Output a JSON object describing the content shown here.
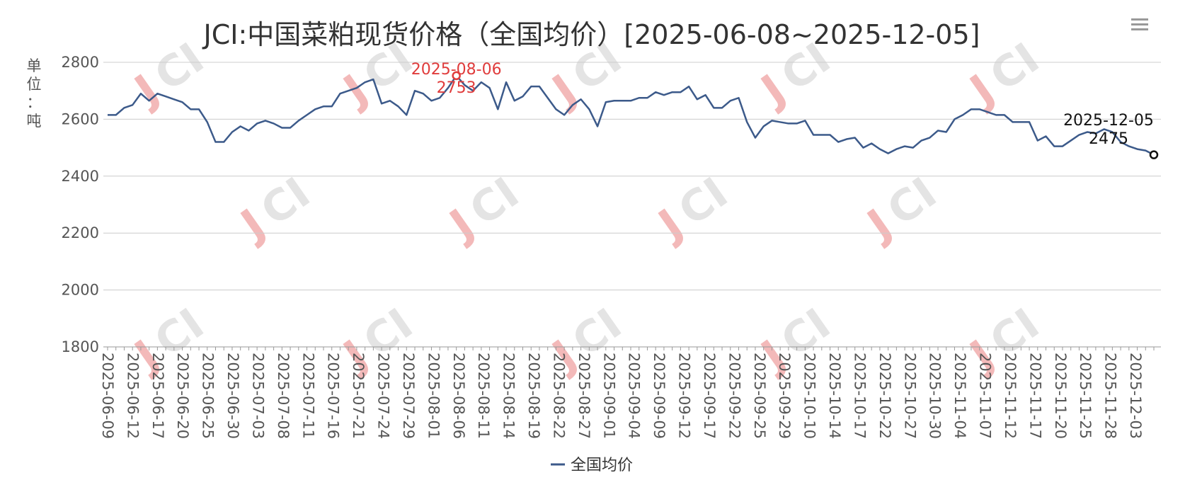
{
  "menu_icon": "hamburger-menu-icon",
  "watermark_text": "JCI",
  "colors": {
    "series": "#3c5a8a",
    "grid": "#cccccc",
    "axis": "#999999",
    "max_annotation": "#e03c3c",
    "last_annotation": "#111111",
    "watermark_red": "#f3b9b9",
    "watermark_gray": "#e4e4e4"
  },
  "chart_data": {
    "type": "line",
    "title": "JCI:中国菜粕现货价格（全国均价）[2025-06-08~2025-12-05]",
    "ylabel": "单位：吨",
    "ylim": [
      1800,
      2800
    ],
    "yticks": [
      1800,
      2000,
      2200,
      2400,
      2600,
      2800
    ],
    "grid": true,
    "legend": {
      "position": "bottom-center",
      "entries": [
        "全国均价"
      ]
    },
    "x_tick_labels": [
      "2025-06-09",
      "2025-06-12",
      "2025-06-17",
      "2025-06-20",
      "2025-06-25",
      "2025-06-30",
      "2025-07-03",
      "2025-07-08",
      "2025-07-11",
      "2025-07-16",
      "2025-07-21",
      "2025-07-24",
      "2025-07-29",
      "2025-08-01",
      "2025-08-06",
      "2025-08-11",
      "2025-08-14",
      "2025-08-19",
      "2025-08-22",
      "2025-08-27",
      "2025-09-01",
      "2025-09-04",
      "2025-09-09",
      "2025-09-12",
      "2025-09-17",
      "2025-09-22",
      "2025-09-25",
      "2025-09-29",
      "2025-10-10",
      "2025-10-14",
      "2025-10-17",
      "2025-10-22",
      "2025-10-27",
      "2025-10-30",
      "2025-11-04",
      "2025-11-07",
      "2025-11-12",
      "2025-11-17",
      "2025-11-20",
      "2025-11-25",
      "2025-11-28",
      "2025-12-03"
    ],
    "annotations": {
      "max": {
        "date": "2025-08-06",
        "value": 2753
      },
      "last": {
        "date": "2025-12-05",
        "value": 2475
      }
    },
    "series": [
      {
        "name": "全国均价",
        "values": [
          2615,
          2615,
          2640,
          2650,
          2690,
          2665,
          2690,
          2680,
          2670,
          2660,
          2635,
          2635,
          2590,
          2520,
          2520,
          2555,
          2575,
          2560,
          2585,
          2595,
          2585,
          2570,
          2570,
          2595,
          2615,
          2635,
          2645,
          2645,
          2690,
          2700,
          2710,
          2730,
          2740,
          2655,
          2665,
          2645,
          2615,
          2700,
          2690,
          2665,
          2675,
          2710,
          2753,
          2720,
          2700,
          2730,
          2710,
          2635,
          2730,
          2665,
          2680,
          2715,
          2715,
          2675,
          2635,
          2615,
          2650,
          2670,
          2635,
          2575,
          2660,
          2665,
          2665,
          2665,
          2675,
          2675,
          2695,
          2685,
          2695,
          2695,
          2715,
          2670,
          2685,
          2640,
          2640,
          2665,
          2675,
          2590,
          2535,
          2575,
          2595,
          2590,
          2585,
          2585,
          2595,
          2545,
          2545,
          2545,
          2520,
          2530,
          2535,
          2500,
          2515,
          2495,
          2480,
          2495,
          2505,
          2500,
          2525,
          2535,
          2560,
          2555,
          2600,
          2615,
          2635,
          2635,
          2625,
          2615,
          2615,
          2590,
          2590,
          2590,
          2525,
          2540,
          2505,
          2505,
          2525,
          2545,
          2555,
          2550,
          2565,
          2555,
          2520,
          2505,
          2495,
          2490,
          2475
        ]
      }
    ]
  }
}
